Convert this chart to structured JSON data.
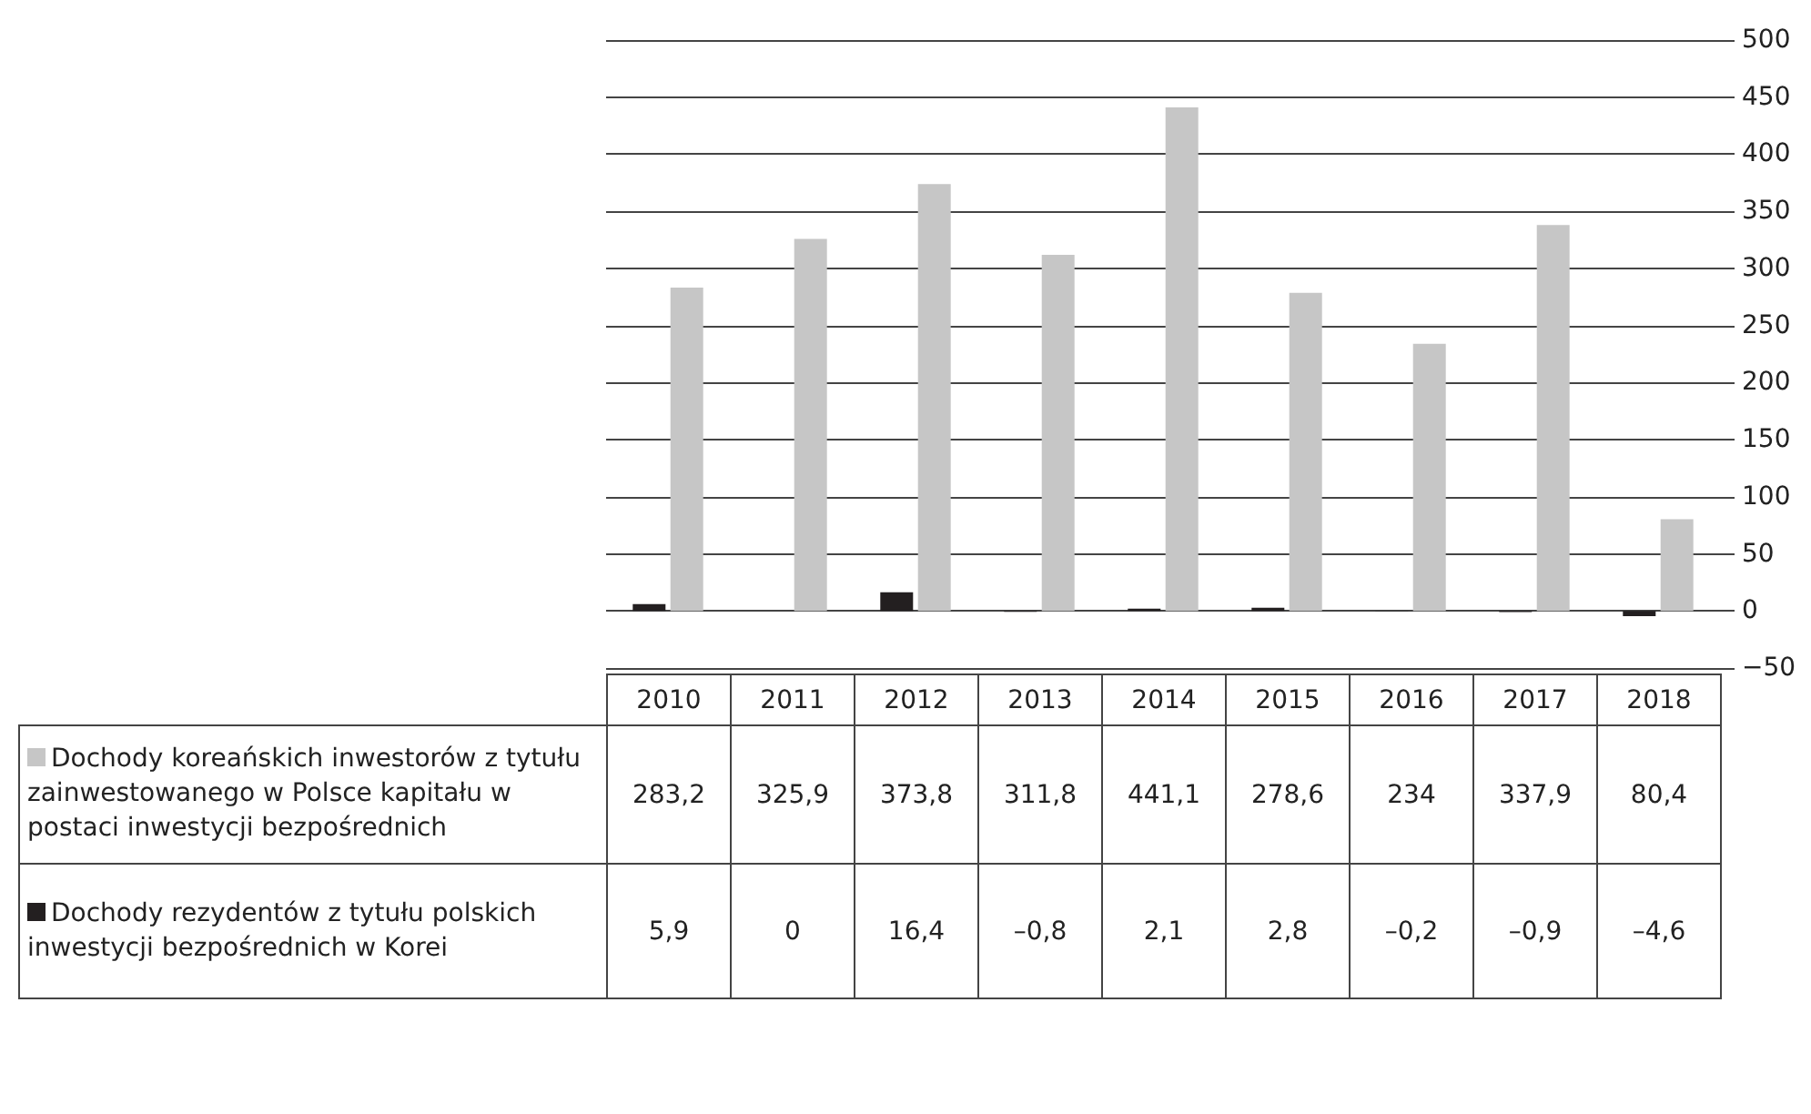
{
  "chart_data": {
    "type": "bar",
    "categories": [
      "2010",
      "2011",
      "2012",
      "2013",
      "2014",
      "2015",
      "2016",
      "2017",
      "2018"
    ],
    "series": [
      {
        "name": "Dochody koreańskich inwestorów z tytułu zainwestowanego w Polsce kapitału w postaci inwestycji bezpośrednich",
        "color": "#c6c6c6",
        "values": [
          283.2,
          325.9,
          373.8,
          311.8,
          441.1,
          278.6,
          234,
          337.9,
          80.4
        ],
        "value_labels": [
          "283,2",
          "325,9",
          "373,8",
          "311,8",
          "441,1",
          "278,6",
          "234",
          "337,9",
          "80,4"
        ]
      },
      {
        "name": "Dochody rezydentów z tytułu polskich inwestycji bezpośrednich w Korei",
        "color": "#231f20",
        "values": [
          5.9,
          0,
          16.4,
          -0.8,
          2.1,
          2.8,
          -0.2,
          -0.9,
          -4.6
        ],
        "value_labels": [
          "5,9",
          "0",
          "16,4",
          "–0,8",
          "2,1",
          "2,8",
          "–0,2",
          "–0,9",
          "–4,6"
        ]
      }
    ],
    "ylim": [
      -50,
      500
    ],
    "yticks": [
      -50,
      0,
      50,
      100,
      150,
      200,
      250,
      300,
      350,
      400,
      450,
      500
    ],
    "grid": "y",
    "legend": "bottom left"
  }
}
